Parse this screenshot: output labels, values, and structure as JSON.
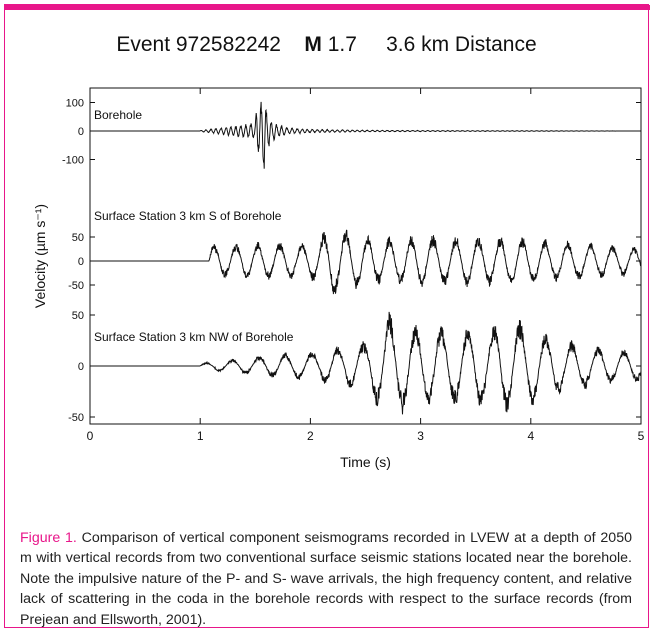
{
  "colors": {
    "accent": "#e8168a",
    "trace": "#111111"
  },
  "chart_data": {
    "type": "line",
    "title": {
      "event": "Event 972582242",
      "magnitude_label": "M",
      "magnitude_value": "1.7",
      "distance": "3.6 km Distance"
    },
    "xlabel": "Time (s)",
    "ylabel": "Velocity (µm s⁻¹)",
    "xlim": [
      0,
      5
    ],
    "x_ticks": [
      "0",
      "1",
      "2",
      "3",
      "4",
      "5"
    ],
    "panels": [
      {
        "label": "Borehole",
        "ylim": [
          -150,
          150
        ],
        "y_ticks": [
          "100",
          "0",
          "-100"
        ],
        "y_tick_values": [
          100,
          0,
          -100
        ],
        "x": [
          0,
          1.0,
          1.5,
          1.52,
          1.54,
          1.56,
          1.58,
          1.6,
          1.62,
          1.65,
          1.7,
          1.8,
          2.0,
          2.5,
          3.0,
          4.0,
          5.0
        ],
        "y": [
          0,
          2,
          30,
          120,
          -60,
          150,
          -170,
          80,
          -60,
          40,
          -25,
          12,
          6,
          3,
          2,
          1,
          0
        ]
      },
      {
        "label": "Surface Station 3 km S of Borehole",
        "ylim": [
          -75,
          75
        ],
        "y_ticks": [
          "50",
          "0",
          "-50"
        ],
        "y_tick_values": [
          50,
          0,
          -50
        ],
        "x": [
          0,
          1.0,
          1.1,
          1.5,
          2.0,
          2.2,
          2.6,
          3.0,
          3.5,
          4.0,
          4.5,
          5.0
        ],
        "y": [
          0,
          0,
          35,
          40,
          40,
          75,
          50,
          55,
          55,
          50,
          40,
          30
        ]
      },
      {
        "label": "Surface Station 3 km NW of Borehole",
        "ylim": [
          -60,
          60
        ],
        "y_ticks": [
          "50",
          "0",
          "-50"
        ],
        "y_tick_values": [
          50,
          0,
          -50
        ],
        "x": [
          0,
          1.0,
          1.5,
          2.0,
          2.5,
          2.7,
          3.0,
          3.5,
          3.85,
          4.2,
          4.6,
          5.0
        ],
        "y": [
          0,
          3,
          10,
          15,
          25,
          55,
          40,
          40,
          50,
          30,
          20,
          15
        ]
      }
    ]
  },
  "caption": {
    "figure_label": "Figure 1.",
    "text": " Comparison of vertical component seismograms recorded in LVEW at a depth of 2050 m with vertical records from two conventional surface seismic stations located near the borehole.  Note the impulsive nature of the P- and S- wave arrivals, the high frequency content, and relative lack of scattering in the coda in the borehole records with respect to the surface records (from Prejean and Ellsworth, 2001)."
  }
}
